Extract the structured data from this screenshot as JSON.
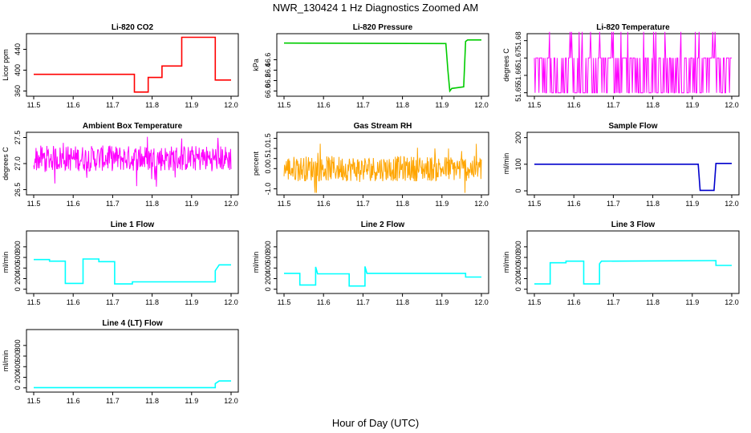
{
  "figure": {
    "title": "NWR_130424  1 Hz Diagnostics Zoomed AM",
    "xlabel": "Hour of Day (UTC)"
  },
  "chart_data": [
    {
      "type": "line",
      "title": "Li-820 CO2",
      "ylabel": "Licor ppm",
      "color": "#ff0000",
      "xlim": [
        11.5,
        12.0
      ],
      "ylim": [
        350,
        470
      ],
      "xticks": [
        11.5,
        11.6,
        11.7,
        11.8,
        11.9,
        12.0
      ],
      "xtick_labels": [
        "11.5",
        "11.6",
        "11.7",
        "11.8",
        "11.9",
        "12.0"
      ],
      "yticks": [
        360,
        400,
        440
      ],
      "ytick_labels": [
        "360",
        "400",
        "440"
      ],
      "x": [
        11.5,
        11.755,
        11.755,
        11.79,
        11.79,
        11.825,
        11.825,
        11.875,
        11.875,
        11.96,
        11.96,
        12.0
      ],
      "y": [
        392,
        392,
        358,
        358,
        386,
        386,
        408,
        408,
        463,
        463,
        381,
        381
      ]
    },
    {
      "type": "line",
      "title": "Li-820 Pressure",
      "ylabel": "kPa",
      "color": "#00cc00",
      "xlim": [
        11.5,
        12.0
      ],
      "ylim": [
        65.9,
        67.1
      ],
      "xticks": [
        11.5,
        11.6,
        11.7,
        11.8,
        11.9,
        12.0
      ],
      "xtick_labels": [
        "11.5",
        "11.6",
        "11.7",
        "11.8",
        "11.9",
        "12.0"
      ],
      "yticks": [
        66.0,
        66.2,
        66.4,
        66.6
      ],
      "ytick_labels": [
        "66.0",
        "66.2",
        "66.4",
        "66.6"
      ],
      "x": [
        11.5,
        11.91,
        11.915,
        11.92,
        11.925,
        11.955,
        11.96,
        11.965,
        12.0
      ],
      "y": [
        66.92,
        66.91,
        66.4,
        66.0,
        66.05,
        66.08,
        66.95,
        66.98,
        66.98
      ]
    },
    {
      "type": "line",
      "title": "Li-820 Temperature",
      "ylabel": "degrees C",
      "color": "#ff00ff",
      "xlim": [
        11.5,
        12.0
      ],
      "ylim": [
        51.648,
        51.684
      ],
      "xticks": [
        11.5,
        11.6,
        11.7,
        11.8,
        11.9,
        12.0
      ],
      "xtick_labels": [
        "11.5",
        "11.6",
        "11.7",
        "11.8",
        "11.9",
        "12.0"
      ],
      "yticks": [
        51.65,
        51.66,
        51.67,
        51.68
      ],
      "ytick_labels": [
        "51.65",
        "51.66",
        "51.67",
        "51.68"
      ],
      "levels": [
        51.65,
        51.67,
        51.685
      ],
      "note": "quantized signal switching between 51.65 and 51.67 with occasional spikes to 51.685"
    },
    {
      "type": "line",
      "title": "Ambient Box Temperature",
      "ylabel": "degrees C",
      "color": "#ff00ff",
      "xlim": [
        11.5,
        12.0
      ],
      "ylim": [
        26.4,
        27.6
      ],
      "xticks": [
        11.5,
        11.6,
        11.7,
        11.8,
        11.9,
        12.0
      ],
      "xtick_labels": [
        "11.5",
        "11.6",
        "11.7",
        "11.8",
        "11.9",
        "12.0"
      ],
      "yticks": [
        26.5,
        27.0,
        27.5
      ],
      "ytick_labels": [
        "26.5",
        "27.0",
        "27.5"
      ],
      "mean": 27.1,
      "noise_range": [
        26.5,
        27.6
      ]
    },
    {
      "type": "line",
      "title": "Gas Stream RH",
      "ylabel": "percent",
      "color": "#ffa500",
      "xlim": [
        11.5,
        12.0
      ],
      "ylim": [
        -1.3,
        1.8
      ],
      "xticks": [
        11.5,
        11.6,
        11.7,
        11.8,
        11.9,
        12.0
      ],
      "xtick_labels": [
        "11.5",
        "11.6",
        "11.7",
        "11.8",
        "11.9",
        "12.0"
      ],
      "yticks": [
        -1.0,
        0.0,
        0.5,
        1.0,
        1.5
      ],
      "ytick_labels": [
        "-1.0",
        "0.0",
        "0.5",
        "1.0",
        "1.5"
      ],
      "mean": 0.0,
      "noise_range": [
        -1.2,
        1.6
      ]
    },
    {
      "type": "line",
      "title": "Sample Flow",
      "ylabel": "ml/min",
      "color": "#0000cc",
      "xlim": [
        11.5,
        12.0
      ],
      "ylim": [
        -15,
        220
      ],
      "xticks": [
        11.5,
        11.6,
        11.7,
        11.8,
        11.9,
        12.0
      ],
      "xtick_labels": [
        "11.5",
        "11.6",
        "11.7",
        "11.8",
        "11.9",
        "12.0"
      ],
      "yticks": [
        0,
        100,
        200
      ],
      "ytick_labels": [
        "0",
        "100",
        "200"
      ],
      "x": [
        11.5,
        11.915,
        11.92,
        11.955,
        11.96,
        12.0
      ],
      "y": [
        100,
        100,
        2,
        2,
        103,
        103
      ]
    },
    {
      "type": "line",
      "title": "Line 1 Flow",
      "ylabel": "ml/min",
      "color": "#00ffff",
      "xlim": [
        11.5,
        12.0
      ],
      "ylim": [
        -80,
        1100
      ],
      "xticks": [
        11.5,
        11.6,
        11.7,
        11.8,
        11.9,
        12.0
      ],
      "xtick_labels": [
        "11.5",
        "11.6",
        "11.7",
        "11.8",
        "11.9",
        "12.0"
      ],
      "yticks": [
        0,
        200,
        400,
        600,
        800
      ],
      "ytick_labels": [
        "0",
        "200",
        "400",
        "600",
        "800"
      ],
      "x": [
        11.5,
        11.54,
        11.54,
        11.58,
        11.58,
        11.625,
        11.625,
        11.665,
        11.665,
        11.705,
        11.705,
        11.75,
        11.75,
        11.96,
        11.96,
        11.97,
        12.0
      ],
      "y": [
        560,
        560,
        530,
        530,
        110,
        110,
        570,
        570,
        520,
        520,
        100,
        100,
        140,
        140,
        350,
        460,
        460
      ]
    },
    {
      "type": "line",
      "title": "Line 2 Flow",
      "ylabel": "ml/min",
      "color": "#00ffff",
      "xlim": [
        11.5,
        12.0
      ],
      "ylim": [
        -80,
        1100
      ],
      "xticks": [
        11.5,
        11.6,
        11.7,
        11.8,
        11.9,
        12.0
      ],
      "xtick_labels": [
        "11.5",
        "11.6",
        "11.7",
        "11.8",
        "11.9",
        "12.0"
      ],
      "yticks": [
        0,
        200,
        400,
        600,
        800
      ],
      "ytick_labels": [
        "0",
        "200",
        "400",
        "600",
        "800"
      ],
      "x": [
        11.5,
        11.54,
        11.54,
        11.58,
        11.58,
        11.585,
        11.665,
        11.665,
        11.705,
        11.705,
        11.71,
        11.96,
        11.96,
        12.0
      ],
      "y": [
        300,
        300,
        80,
        80,
        420,
        290,
        290,
        60,
        60,
        430,
        300,
        300,
        230,
        230
      ]
    },
    {
      "type": "line",
      "title": "Line 3 Flow",
      "ylabel": "ml/min",
      "color": "#00ffff",
      "xlim": [
        11.5,
        12.0
      ],
      "ylim": [
        -80,
        1100
      ],
      "xticks": [
        11.5,
        11.6,
        11.7,
        11.8,
        11.9,
        12.0
      ],
      "xtick_labels": [
        "11.5",
        "11.6",
        "11.7",
        "11.8",
        "11.9",
        "12.0"
      ],
      "yticks": [
        0,
        200,
        400,
        600,
        800
      ],
      "ytick_labels": [
        "0",
        "200",
        "400",
        "600",
        "800"
      ],
      "x": [
        11.5,
        11.54,
        11.54,
        11.58,
        11.58,
        11.625,
        11.625,
        11.665,
        11.665,
        11.67,
        11.96,
        11.96,
        12.0
      ],
      "y": [
        100,
        100,
        500,
        500,
        530,
        530,
        100,
        100,
        480,
        530,
        540,
        450,
        450
      ]
    },
    {
      "type": "line",
      "title": "Line 4 (LT) Flow",
      "ylabel": "ml/min",
      "color": "#00ffff",
      "xlim": [
        11.5,
        12.0
      ],
      "ylim": [
        -80,
        1100
      ],
      "xticks": [
        11.5,
        11.6,
        11.7,
        11.8,
        11.9,
        12.0
      ],
      "xtick_labels": [
        "11.5",
        "11.6",
        "11.7",
        "11.8",
        "11.9",
        "12.0"
      ],
      "yticks": [
        0,
        200,
        400,
        600,
        800
      ],
      "ytick_labels": [
        "0",
        "200",
        "400",
        "600",
        "800"
      ],
      "x": [
        11.5,
        11.96,
        11.96,
        11.97,
        12.0
      ],
      "y": [
        5,
        5,
        80,
        130,
        130
      ]
    }
  ]
}
